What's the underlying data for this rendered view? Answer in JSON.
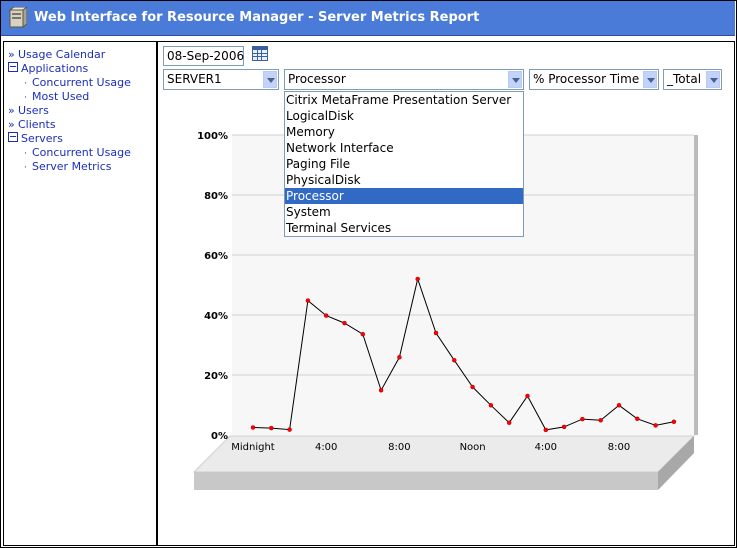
{
  "window": {
    "title": "Web Interface for Resource Manager - Server Metrics Report"
  },
  "sidebar": {
    "items": [
      {
        "label": "Usage Calendar",
        "marker": "»",
        "level": 0
      },
      {
        "label": "Applications",
        "marker": "box",
        "level": 0
      },
      {
        "label": "Concurrent Usage",
        "marker": "·",
        "level": 1
      },
      {
        "label": "Most Used",
        "marker": "·",
        "level": 1
      },
      {
        "label": "Users",
        "marker": "»",
        "level": 0
      },
      {
        "label": "Clients",
        "marker": "»",
        "level": 0
      },
      {
        "label": "Servers",
        "marker": "box",
        "level": 0
      },
      {
        "label": "Concurrent Usage",
        "marker": "·",
        "level": 1
      },
      {
        "label": "Server Metrics",
        "marker": "·",
        "level": 1
      }
    ]
  },
  "controls": {
    "date": "08-Sep-2006",
    "server": "SERVER1",
    "object": "Processor",
    "counter": "% Processor Time",
    "instance": "_Total"
  },
  "object_dropdown": {
    "options": [
      "Citrix MetaFrame Presentation Server",
      "LogicalDisk",
      "Memory",
      "Network Interface",
      "Paging File",
      "PhysicalDisk",
      "Processor",
      "System",
      "Terminal Services"
    ],
    "selected": "Processor"
  },
  "colors": {
    "titlebar": "#4a7bd8",
    "link": "#1d2eb8",
    "selection": "#316ac5",
    "series_line": "#000000",
    "series_marker": "#ff0000"
  },
  "chart_data": {
    "type": "line",
    "title": "",
    "xlabel": "",
    "ylabel": "",
    "ylim": [
      0,
      100
    ],
    "y_ticks": [
      "0%",
      "20%",
      "40%",
      "60%",
      "80%",
      "100%"
    ],
    "x_ticks": [
      "Midnight",
      "4:00",
      "8:00",
      "Noon",
      "4:00",
      "8:00"
    ],
    "x_tick_hours": [
      0,
      4,
      8,
      12,
      16,
      20
    ],
    "x_range_hours": [
      0,
      24
    ],
    "grid": true,
    "legend": "none",
    "series": [
      {
        "x": [
          1,
          2,
          3,
          4,
          5,
          6,
          7,
          8,
          9,
          10,
          11,
          12,
          13,
          14,
          15,
          16,
          17,
          18,
          19,
          20,
          21,
          22,
          23,
          24
        ],
        "values": [
          2.5,
          2.3,
          1.8,
          44.8,
          39.8,
          37.3,
          33.6,
          14.9,
          25.9,
          52.0,
          34.0,
          24.9,
          16.0,
          9.9,
          4.1,
          13.0,
          1.7,
          2.7,
          5.3,
          4.9,
          9.9,
          5.4,
          3.2,
          4.4
        ]
      }
    ]
  }
}
